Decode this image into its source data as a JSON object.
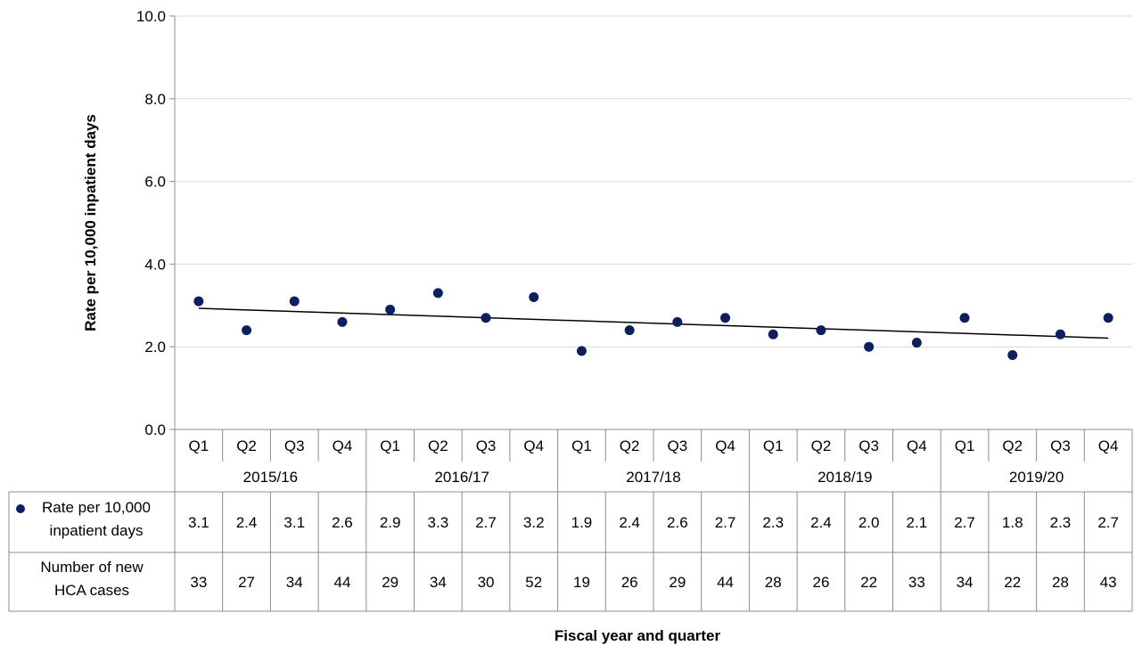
{
  "chart_data": {
    "type": "scatter",
    "xlabel": "Fiscal year and quarter",
    "ylabel": "Rate per 10,000 inpatient days",
    "ylim": [
      0,
      10
    ],
    "yticks": [
      "0.0",
      "2.0",
      "4.0",
      "6.0",
      "8.0",
      "10.0"
    ],
    "grid": true,
    "quarters": [
      "Q1",
      "Q2",
      "Q3",
      "Q4",
      "Q1",
      "Q2",
      "Q3",
      "Q4",
      "Q1",
      "Q2",
      "Q3",
      "Q4",
      "Q1",
      "Q2",
      "Q3",
      "Q4",
      "Q1",
      "Q2",
      "Q3",
      "Q4"
    ],
    "years": [
      "2015/16",
      "2016/17",
      "2017/18",
      "2018/19",
      "2019/20"
    ],
    "series": [
      {
        "name": "Rate per 10,000 inpatient days",
        "color": "#0d1f5c",
        "values": [
          3.1,
          2.4,
          3.1,
          2.6,
          2.9,
          3.3,
          2.7,
          3.2,
          1.9,
          2.4,
          2.6,
          2.7,
          2.3,
          2.4,
          2.0,
          2.1,
          2.7,
          1.8,
          2.3,
          2.7
        ]
      }
    ],
    "trendline": {
      "start": 2.93,
      "end": 2.21,
      "color": "#000000"
    },
    "table": {
      "rows": [
        {
          "label_lines": [
            "Rate per 10,000",
            "inpatient days"
          ],
          "marker": true,
          "values": [
            "3.1",
            "2.4",
            "3.1",
            "2.6",
            "2.9",
            "3.3",
            "2.7",
            "3.2",
            "1.9",
            "2.4",
            "2.6",
            "2.7",
            "2.3",
            "2.4",
            "2.0",
            "2.1",
            "2.7",
            "1.8",
            "2.3",
            "2.7"
          ]
        },
        {
          "label_lines": [
            "Number of new",
            "HCA cases"
          ],
          "marker": false,
          "values": [
            "33",
            "27",
            "34",
            "44",
            "29",
            "34",
            "30",
            "52",
            "19",
            "26",
            "29",
            "44",
            "28",
            "26",
            "22",
            "33",
            "34",
            "22",
            "28",
            "43"
          ]
        }
      ]
    }
  }
}
